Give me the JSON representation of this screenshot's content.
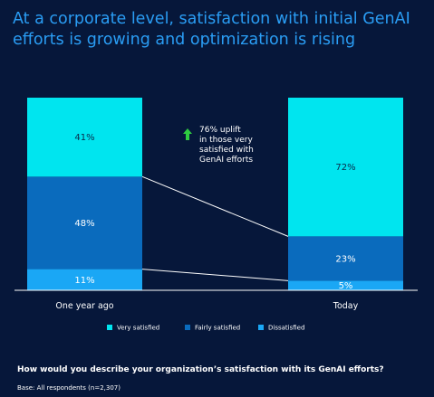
{
  "title": "At a corporate level, satisfaction with initial GenAI efforts is growing and optimization is rising",
  "question": "How would you describe your organization’s satisfaction with its GenAI efforts?",
  "base": "Base: All respondents (n=2,307)",
  "annotation": {
    "icon": "arrow-up-icon",
    "color": "#2ecc40",
    "lines": [
      "76% uplift",
      "in those very",
      "satisfied with",
      "GenAI efforts"
    ]
  },
  "chart_data": {
    "type": "bar",
    "stacked": true,
    "categories": [
      "One year ago",
      "Today"
    ],
    "series": [
      {
        "name": "Dissatisfied",
        "values": [
          11,
          5
        ],
        "color": "#1aa7f5"
      },
      {
        "name": "Fairly satisfied",
        "values": [
          48,
          23
        ],
        "color": "#0a6bbd"
      },
      {
        "name": "Very satisfied",
        "values": [
          41,
          72
        ],
        "color": "#00e5ef"
      }
    ],
    "value_labels": [
      [
        "11%",
        "5%"
      ],
      [
        "48%",
        "23%"
      ],
      [
        "41%",
        "72%"
      ]
    ],
    "legend_order": [
      "Very satisfied",
      "Fairly satisfied",
      "Dissatisfied"
    ],
    "legend_position": "bottom",
    "ylim": [
      0,
      100
    ],
    "grid": false
  }
}
